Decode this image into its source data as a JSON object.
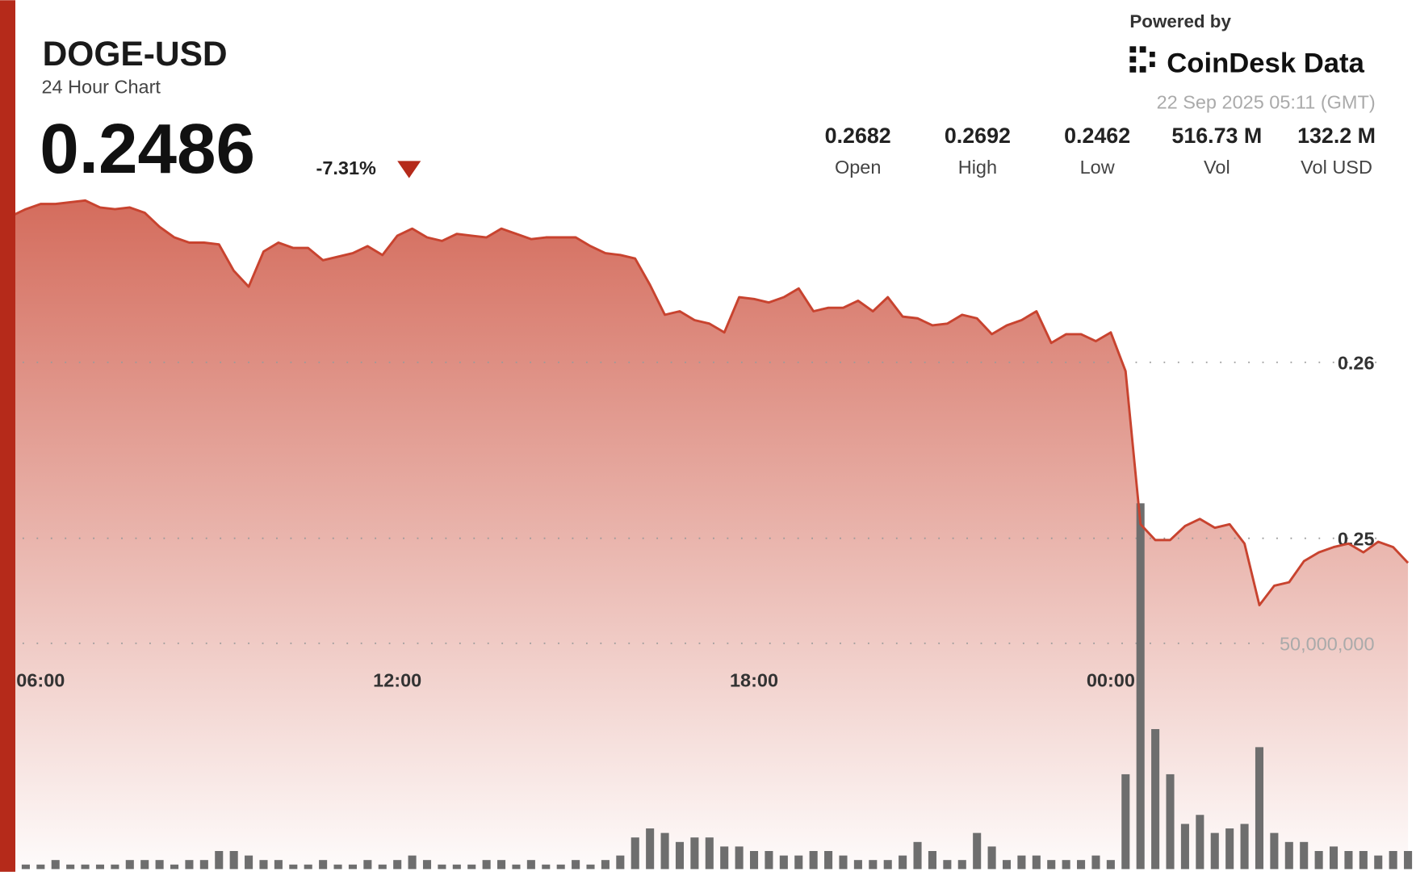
{
  "header": {
    "price": "0.2486",
    "change": "-7.31%",
    "powered": "Powered by",
    "brand": "CoinDesk Data",
    "timestamp": "22 Sep 2025 05:11 (GMT)",
    "stats": [
      {
        "value": "0.2682",
        "label": "Open"
      },
      {
        "value": "0.2692",
        "label": "High"
      },
      {
        "value": "0.2462",
        "label": "Low"
      },
      {
        "value": "516.73 M",
        "label": "Vol"
      },
      {
        "value": "132.2 M",
        "label": "Vol USD"
      }
    ]
  },
  "chart_data": {
    "type": "area",
    "title": "DOGE-USD",
    "subtitle": "24 Hour Chart",
    "categories": [
      null,
      null,
      "06:00",
      null,
      null,
      null,
      null,
      null,
      null,
      null,
      null,
      null,
      null,
      null,
      null,
      null,
      null,
      null,
      null,
      null,
      null,
      null,
      null,
      null,
      null,
      null,
      "12:00",
      null,
      null,
      null,
      null,
      null,
      null,
      null,
      null,
      null,
      null,
      null,
      null,
      null,
      null,
      null,
      null,
      null,
      null,
      null,
      null,
      null,
      null,
      null,
      "18:00",
      null,
      null,
      null,
      null,
      null,
      null,
      null,
      null,
      null,
      null,
      null,
      null,
      null,
      null,
      null,
      null,
      null,
      null,
      null,
      null,
      null,
      null,
      null,
      "00:00",
      null,
      null,
      null,
      null,
      null,
      null,
      null,
      null,
      null,
      null,
      null,
      null,
      null,
      null,
      null,
      null,
      null,
      null,
      null,
      null
    ],
    "series": [
      {
        "color": "#c8432f",
        "values": [
          0.2683,
          0.2687,
          0.269,
          0.269,
          0.2691,
          0.2692,
          0.2688,
          0.2687,
          0.2688,
          0.2685,
          0.2677,
          0.2671,
          0.2668,
          0.2668,
          0.2667,
          0.2652,
          0.2643,
          0.2663,
          0.2668,
          0.2665,
          0.2665,
          0.2658,
          0.266,
          0.2662,
          0.2666,
          0.2661,
          0.2672,
          0.2676,
          0.2671,
          0.2669,
          0.2673,
          0.2672,
          0.2671,
          0.2676,
          0.2673,
          0.267,
          0.2671,
          0.2671,
          0.2671,
          0.2666,
          0.2662,
          0.2661,
          0.2659,
          0.2644,
          0.2627,
          0.2629,
          0.2624,
          0.2622,
          0.2617,
          0.2637,
          0.2636,
          0.2634,
          0.2637,
          0.2642,
          0.2629,
          0.2631,
          0.2631,
          0.2635,
          0.2629,
          0.2637,
          0.2626,
          0.2625,
          0.2621,
          0.2622,
          0.2627,
          0.2625,
          0.2616,
          0.2621,
          0.2624,
          0.2629,
          0.2611,
          0.2616,
          0.2616,
          0.2612,
          0.2617,
          0.2595,
          0.2508,
          0.2499,
          0.2499,
          0.2507,
          0.2511,
          0.2506,
          0.2508,
          0.2497,
          0.2462,
          0.2473,
          0.2475,
          0.2487,
          0.2492,
          0.2495,
          0.2497,
          0.2492,
          0.2498,
          0.2495,
          0.2486
        ]
      },
      {
        "color": "#6e6e6e",
        "axis": "y2",
        "values": [
          2000000,
          1000000,
          1000000,
          2000000,
          1000000,
          1000000,
          1000000,
          1000000,
          2000000,
          2000000,
          2000000,
          1000000,
          2000000,
          2000000,
          4000000,
          4000000,
          3000000,
          2000000,
          2000000,
          1000000,
          1000000,
          2000000,
          1000000,
          1000000,
          2000000,
          1000000,
          2000000,
          3000000,
          2000000,
          1000000,
          1000000,
          1000000,
          2000000,
          2000000,
          1000000,
          2000000,
          1000000,
          1000000,
          2000000,
          1000000,
          2000000,
          3000000,
          7000000,
          9000000,
          8000000,
          6000000,
          7000000,
          7000000,
          5000000,
          5000000,
          4000000,
          4000000,
          3000000,
          3000000,
          4000000,
          4000000,
          3000000,
          2000000,
          2000000,
          2000000,
          3000000,
          6000000,
          4000000,
          2000000,
          2000000,
          8000000,
          5000000,
          2000000,
          3000000,
          3000000,
          2000000,
          2000000,
          2000000,
          3000000,
          2000000,
          21000000,
          81000000,
          31000000,
          21000000,
          10000000,
          12000000,
          8000000,
          9000000,
          10000000,
          27000000,
          8000000,
          6000000,
          6000000,
          4000000,
          5000000,
          4000000,
          4000000,
          3000000,
          4000000,
          4000000
        ]
      }
    ],
    "ylim": [
      0.2312,
      0.2698
    ],
    "yticks": [
      0.25,
      0.26
    ],
    "y2lim": [
      0,
      150400000
    ],
    "y2ticks": [
      {
        "value": 50000000,
        "label": "50,000,000"
      }
    ],
    "grid": true
  }
}
